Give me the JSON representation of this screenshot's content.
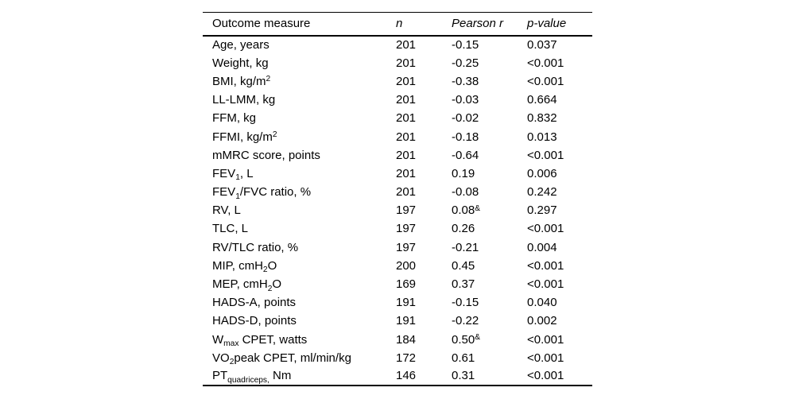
{
  "colors": {
    "background": "#ffffff",
    "text": "#000000",
    "rule": "#000000"
  },
  "table": {
    "columns": [
      {
        "key": "measure",
        "label": "Outcome measure",
        "italic": false
      },
      {
        "key": "n",
        "label": "n",
        "italic": true
      },
      {
        "key": "pearson_r",
        "label": "Pearson r",
        "italic": true
      },
      {
        "key": "p_value",
        "label": "p-value",
        "italic": true
      }
    ],
    "rows": [
      {
        "measure": "Age, years",
        "n": "201",
        "pearson_r": "-0.15",
        "p_value": "0.037"
      },
      {
        "measure": "Weight, kg",
        "n": "201",
        "pearson_r": "-0.25",
        "p_value": "<0.001"
      },
      {
        "measure": "BMI, kg/m^{2}",
        "n": "201",
        "pearson_r": "-0.38",
        "p_value": "<0.001"
      },
      {
        "measure": "LL-LMM, kg",
        "n": "201",
        "pearson_r": "-0.03",
        "p_value": "0.664"
      },
      {
        "measure": "FFM, kg",
        "n": "201",
        "pearson_r": "-0.02",
        "p_value": "0.832"
      },
      {
        "measure": "FFMI, kg/m^{2}",
        "n": "201",
        "pearson_r": "-0.18",
        "p_value": "0.013"
      },
      {
        "measure": "mMRC score, points",
        "n": "201",
        "pearson_r": "-0.64",
        "p_value": "<0.001"
      },
      {
        "measure": "FEV_{1}, L",
        "n": "201",
        "pearson_r": "0.19",
        "p_value": "0.006"
      },
      {
        "measure": "FEV_{1}/FVC ratio, %",
        "n": "201",
        "pearson_r": "-0.08",
        "p_value": "0.242"
      },
      {
        "measure": "RV, L",
        "n": "197",
        "pearson_r": "0.08^{&}",
        "p_value": "0.297"
      },
      {
        "measure": "TLC, L",
        "n": "197",
        "pearson_r": "0.26",
        "p_value": "<0.001"
      },
      {
        "measure": "RV/TLC ratio, %",
        "n": "197",
        "pearson_r": "-0.21",
        "p_value": "0.004"
      },
      {
        "measure": "MIP, cmH_{2}O",
        "n": "200",
        "pearson_r": "0.45",
        "p_value": "<0.001"
      },
      {
        "measure": "MEP, cmH_{2}O",
        "n": "169",
        "pearson_r": "0.37",
        "p_value": "<0.001"
      },
      {
        "measure": "HADS-A, points",
        "n": "191",
        "pearson_r": "-0.15",
        "p_value": "0.040"
      },
      {
        "measure": "HADS-D, points",
        "n": "191",
        "pearson_r": "-0.22",
        "p_value": "0.002"
      },
      {
        "measure": "W_{max} CPET, watts",
        "n": "184",
        "pearson_r": "0.50^{&}",
        "p_value": "<0.001"
      },
      {
        "measure": "VO_{2}peak CPET, ml/min/kg",
        "n": "172",
        "pearson_r": "0.61",
        "p_value": "<0.001"
      },
      {
        "measure": "PT_{quadriceps,} Nm",
        "n": "146",
        "pearson_r": "0.31",
        "p_value": "<0.001"
      }
    ]
  }
}
